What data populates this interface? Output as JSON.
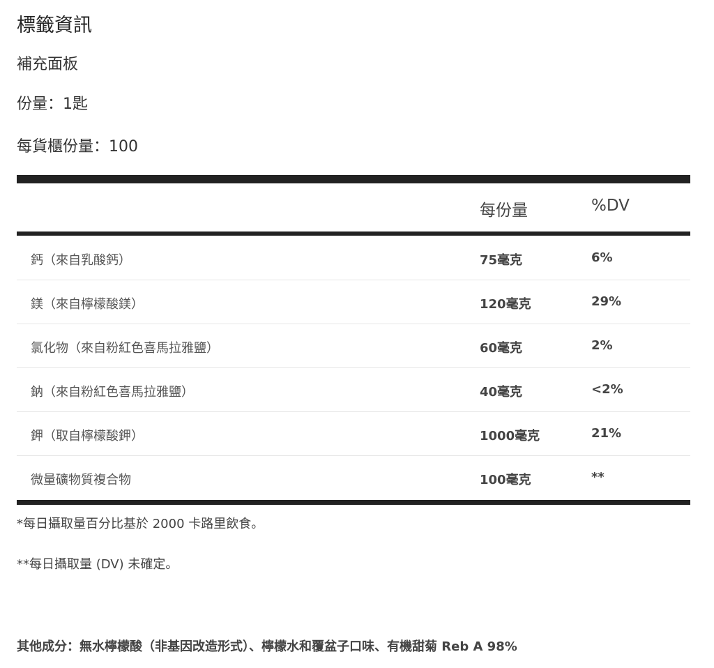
{
  "title": "標籤資訊",
  "subtitle": "補充面板",
  "serving_size": "份量：1匙",
  "servings_per_container": "每貨櫃份量：100",
  "table": {
    "headers": {
      "amount": "每份量",
      "dv": "%DV"
    },
    "rows": [
      {
        "name": "鈣（來自乳酸鈣）",
        "amount": "75毫克",
        "dv": "6%"
      },
      {
        "name": "鎂（來自檸檬酸鎂）",
        "amount": "120毫克",
        "dv": "29%"
      },
      {
        "name": "氯化物（來自粉紅色喜馬拉雅鹽）",
        "amount": "60毫克",
        "dv": "2%"
      },
      {
        "name": "鈉（來自粉紅色喜馬拉雅鹽）",
        "amount": "40毫克",
        "dv": "<2%"
      },
      {
        "name": "鉀（取自檸檬酸鉀）",
        "amount": "1000毫克",
        "dv": "21%"
      },
      {
        "name": "微量礦物質複合物",
        "amount": "100毫克",
        "dv": "**"
      }
    ]
  },
  "footnotes": [
    "*每日攝取量百分比基於 2000 卡路里飲食。",
    "**每日攝取量 (DV) 未確定。"
  ],
  "other_ingredients": "其他成分：無水檸檬酸（非基因改造形式）、檸檬水和覆盆子口味、有機甜菊 Reb A 98%"
}
